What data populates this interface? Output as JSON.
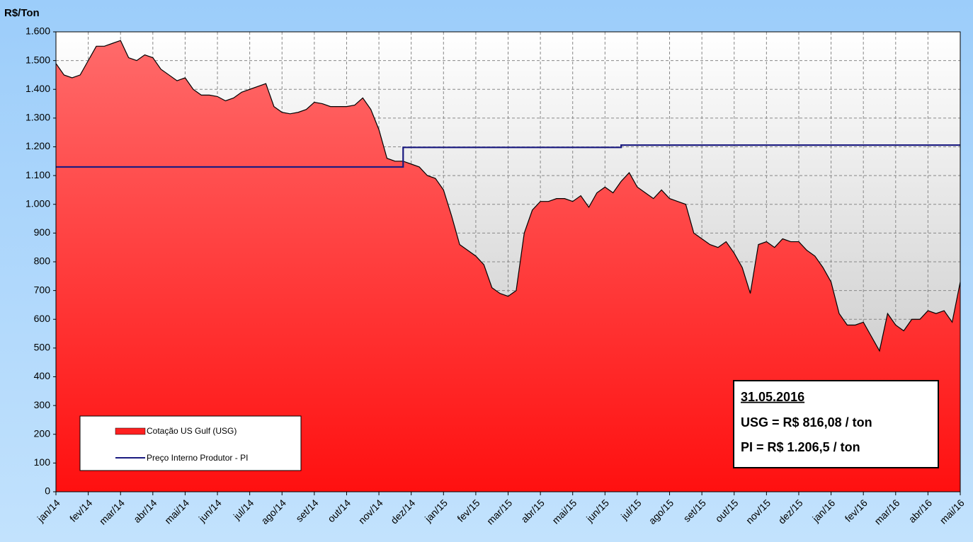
{
  "chart_data": {
    "type": "area",
    "y_label": "R$/Ton",
    "categories": [
      "jan/14",
      null,
      null,
      null,
      "fev/14",
      null,
      null,
      null,
      "mar/14",
      null,
      null,
      null,
      "abr/14",
      null,
      null,
      null,
      "mai/14",
      null,
      null,
      null,
      "jun/14",
      null,
      null,
      null,
      "jul/14",
      null,
      null,
      null,
      "ago/14",
      null,
      null,
      null,
      "set/14",
      null,
      null,
      null,
      "out/14",
      null,
      null,
      null,
      "nov/14",
      null,
      null,
      null,
      "dez/14",
      null,
      null,
      null,
      "jan/15",
      null,
      null,
      null,
      "fev/15",
      null,
      null,
      null,
      "mar/15",
      null,
      null,
      null,
      "abr/15",
      null,
      null,
      null,
      "mai/15",
      null,
      null,
      null,
      "jun/15",
      null,
      null,
      null,
      "jul/15",
      null,
      null,
      null,
      "ago/15",
      null,
      null,
      null,
      "set/15",
      null,
      null,
      null,
      "out/15",
      null,
      null,
      null,
      "nov/15",
      null,
      null,
      null,
      "dez/15",
      null,
      null,
      null,
      "jan/16",
      null,
      null,
      null,
      "fev/16",
      null,
      null,
      null,
      "mar/16",
      null,
      null,
      null,
      "abr/16",
      null,
      null,
      null,
      "mai/16"
    ],
    "series": [
      {
        "name": "Cotação US Gulf (USG)",
        "kind": "area",
        "color": "#ff2020",
        "values": [
          1490,
          1450,
          1440,
          1450,
          1500,
          1550,
          1550,
          1560,
          1570,
          1510,
          1500,
          1520,
          1510,
          1470,
          1450,
          1430,
          1440,
          1400,
          1380,
          1380,
          1375,
          1360,
          1370,
          1390,
          1400,
          1410,
          1420,
          1340,
          1320,
          1315,
          1320,
          1330,
          1355,
          1350,
          1340,
          1340,
          1340,
          1345,
          1370,
          1330,
          1260,
          1160,
          1150,
          1150,
          1140,
          1130,
          1100,
          1090,
          1050,
          960,
          860,
          840,
          820,
          790,
          710,
          690,
          680,
          700,
          900,
          980,
          1010,
          1010,
          1020,
          1020,
          1010,
          1030,
          990,
          1040,
          1060,
          1040,
          1080,
          1110,
          1060,
          1040,
          1020,
          1050,
          1020,
          1010,
          1000,
          900,
          880,
          860,
          850,
          870,
          830,
          780,
          690,
          860,
          870,
          850,
          880,
          870,
          870,
          840,
          820,
          780,
          730,
          620,
          580,
          580,
          590,
          540,
          490,
          620,
          580,
          560,
          600,
          600,
          630,
          620,
          630,
          590,
          730
        ]
      },
      {
        "name": "Preço Interno Produtor - PI",
        "kind": "line",
        "color": "#1a1a80",
        "values": [
          1130,
          1130,
          1130,
          1130,
          1130,
          1130,
          1130,
          1130,
          1130,
          1130,
          1130,
          1130,
          1130,
          1130,
          1130,
          1130,
          1130,
          1130,
          1130,
          1130,
          1130,
          1130,
          1130,
          1130,
          1130,
          1130,
          1130,
          1130,
          1130,
          1130,
          1130,
          1130,
          1130,
          1130,
          1130,
          1130,
          1130,
          1130,
          1130,
          1130,
          1130,
          1130,
          1130,
          1198,
          1198,
          1198,
          1198,
          1198,
          1198,
          1198,
          1198,
          1198,
          1198,
          1198,
          1198,
          1198,
          1198,
          1198,
          1198,
          1198,
          1198,
          1198,
          1198,
          1198,
          1198,
          1198,
          1198,
          1198,
          1198,
          1198,
          1206,
          1206,
          1206,
          1206,
          1206,
          1206,
          1206,
          1206,
          1206,
          1206,
          1206,
          1206,
          1206,
          1206,
          1206,
          1206,
          1206,
          1206,
          1206,
          1206,
          1206,
          1206,
          1206,
          1206,
          1206,
          1206,
          1206,
          1206,
          1206,
          1206,
          1206,
          1206,
          1206,
          1206,
          1206,
          1206,
          1206,
          1206,
          1206,
          1206,
          1206,
          1206,
          1206
        ]
      }
    ],
    "ylim": [
      0,
      1600
    ],
    "yticks": [
      0,
      100,
      200,
      300,
      400,
      500,
      600,
      700,
      800,
      900,
      {
        "value": 1000,
        "label": "1.000"
      },
      {
        "value": 1100,
        "label": "1.100"
      },
      {
        "value": 1200,
        "label": "1.200"
      },
      {
        "value": 1300,
        "label": "1.300"
      },
      {
        "value": 1400,
        "label": "1.400"
      },
      {
        "value": 1500,
        "label": "1.500"
      },
      {
        "value": 1600,
        "label": "1.600"
      }
    ],
    "grid": true,
    "annotation": [
      "31.05.2016",
      "USG = R$ 816,08 / ton",
      "PI = R$ 1.206,5 / ton"
    ]
  }
}
